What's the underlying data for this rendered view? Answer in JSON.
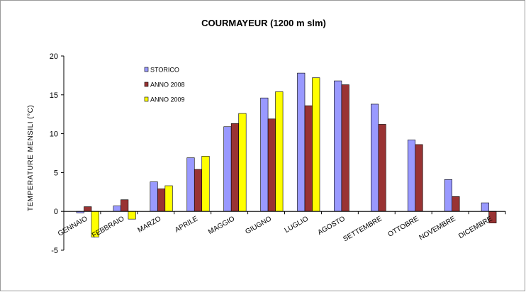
{
  "chart_data": {
    "type": "bar",
    "title": "COURMAYEUR (1200 m slm)",
    "ylabel": "TEMPERATURE MENSILI (°C)",
    "xlabel": "",
    "ylim": [
      -5,
      20
    ],
    "yticks": [
      -5,
      0,
      5,
      10,
      15,
      20
    ],
    "grid": false,
    "legend_position": "top-left",
    "categories": [
      "GENNAIO",
      "FEBBRAIO",
      "MARZO",
      "APRILE",
      "MAGGIO",
      "GIUGNO",
      "LUGLIO",
      "AGOSTO",
      "SETTEMBRE",
      "OTTOBRE",
      "NOVEMBRE",
      "DICEMBRE"
    ],
    "series": [
      {
        "name": "STORICO",
        "color": "#9999ff",
        "values": [
          -0.2,
          0.7,
          3.8,
          6.9,
          10.9,
          14.6,
          17.8,
          16.8,
          13.8,
          9.2,
          4.1,
          1.1
        ]
      },
      {
        "name": "ANNO 2008",
        "color": "#993333",
        "values": [
          0.6,
          1.5,
          2.9,
          5.4,
          11.3,
          11.9,
          13.6,
          16.3,
          11.2,
          8.6,
          1.9,
          -1.5
        ]
      },
      {
        "name": "ANNO 2009",
        "color": "#ffff00",
        "values": [
          -3.3,
          -1.0,
          3.3,
          7.1,
          12.6,
          15.4,
          17.2,
          null,
          null,
          null,
          null,
          null
        ]
      }
    ]
  }
}
